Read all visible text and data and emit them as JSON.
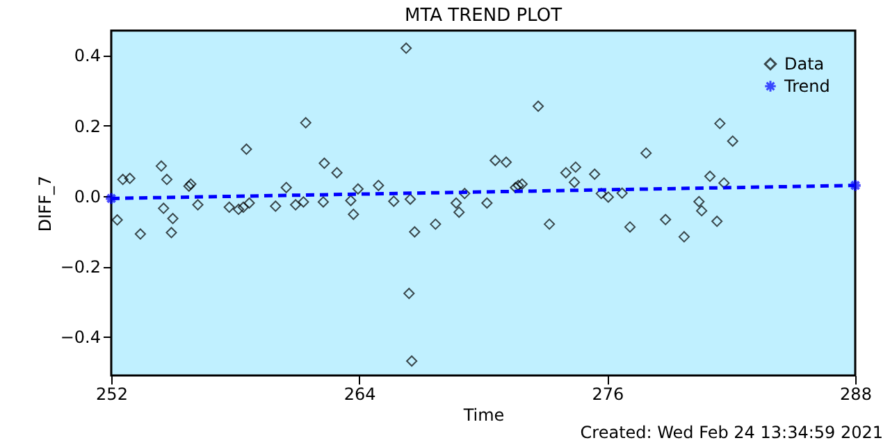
{
  "chart_data": {
    "type": "scatter",
    "title": "MTA TREND PLOT",
    "xlabel": "Time",
    "ylabel": "DIFF_7",
    "xlim": [
      252,
      288
    ],
    "xticks": [
      252,
      264,
      276,
      288
    ],
    "ylim": [
      -0.51,
      0.47
    ],
    "yticks": [
      -0.4,
      -0.2,
      {
        "value": 0,
        "label": "0.0"
      },
      0.2,
      0.4
    ],
    "grid": false,
    "legend": "top right",
    "series": [
      {
        "name": "Data",
        "marker": "diamond",
        "color": "#000000",
        "x": [
          252.29,
          252.56,
          252.9,
          253.41,
          254.42,
          254.53,
          254.69,
          254.91,
          254.98,
          255.76,
          255.85,
          256.19,
          257.71,
          258.16,
          258.39,
          258.54,
          258.68,
          259.95,
          260.47,
          260.92,
          261.3,
          261.41,
          262.26,
          262.31,
          262.92,
          263.59,
          263.72,
          263.94,
          264.93,
          265.67,
          266.27,
          266.41,
          266.47,
          266.54,
          266.68,
          267.69,
          268.69,
          268.83,
          269.1,
          270.18,
          270.58,
          271.11,
          271.56,
          271.7,
          271.88,
          272.66,
          273.2,
          274.0,
          274.41,
          274.47,
          275.39,
          275.71,
          276.05,
          276.72,
          277.1,
          277.88,
          278.82,
          279.72,
          280.44,
          280.57,
          280.97,
          281.31,
          281.45,
          281.65,
          282.07
        ],
        "values": [
          -0.068,
          0.047,
          0.05,
          -0.108,
          0.085,
          -0.035,
          0.047,
          -0.104,
          -0.064,
          0.028,
          0.034,
          -0.025,
          -0.032,
          -0.038,
          -0.032,
          0.133,
          -0.02,
          -0.029,
          0.024,
          -0.025,
          -0.017,
          0.208,
          -0.017,
          0.093,
          0.066,
          -0.013,
          -0.052,
          0.02,
          0.03,
          -0.015,
          0.42,
          -0.277,
          -0.009,
          -0.469,
          -0.102,
          -0.08,
          -0.02,
          -0.046,
          0.007,
          -0.02,
          0.101,
          0.096,
          0.024,
          0.03,
          0.034,
          0.255,
          -0.08,
          0.066,
          0.039,
          0.082,
          0.062,
          0.007,
          -0.003,
          0.008,
          -0.088,
          0.122,
          -0.067,
          -0.116,
          -0.016,
          -0.042,
          0.056,
          -0.072,
          0.206,
          0.037,
          0.156
        ]
      },
      {
        "name": "Trend",
        "type": "line",
        "marker": "cross",
        "line_style": "dashed",
        "color": "#0000ff",
        "x": [
          252,
          288
        ],
        "values": [
          -0.007,
          0.03
        ]
      }
    ],
    "annotations": [
      "Created: Wed Feb 24 13:34:59 2021"
    ]
  }
}
